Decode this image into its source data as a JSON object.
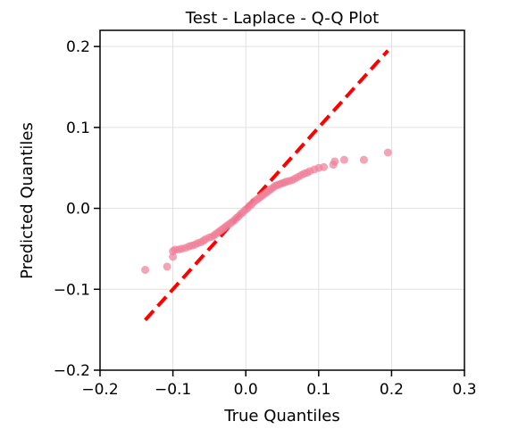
{
  "chart_data": {
    "type": "scatter",
    "title": "Test - Laplace - Q-Q Plot",
    "xlabel": "True Quantiles",
    "ylabel": "Predicted Quantiles",
    "xlim": [
      -0.2,
      0.3
    ],
    "ylim": [
      -0.2,
      0.22
    ],
    "xticks": [
      -0.2,
      -0.1,
      0.0,
      0.1,
      0.2,
      0.3
    ],
    "yticks": [
      -0.2,
      -0.1,
      0.0,
      0.1,
      0.2
    ],
    "xtick_labels": [
      "−0.2",
      "−0.1",
      "0.0",
      "0.1",
      "0.2",
      "0.3"
    ],
    "ytick_labels": [
      "−0.2",
      "−0.1",
      "0.0",
      "0.1",
      "0.2"
    ],
    "grid": true,
    "marker_color": "#f07d97",
    "reference_line": {
      "style": "dashed",
      "color": "#ff0000",
      "x": [
        -0.138,
        0.195
      ],
      "y": [
        -0.138,
        0.195
      ]
    },
    "points": [
      [
        -0.138,
        -0.076
      ],
      [
        -0.108,
        -0.072
      ],
      [
        -0.1,
        -0.06
      ],
      [
        -0.1,
        -0.053
      ],
      [
        -0.097,
        -0.051
      ],
      [
        -0.092,
        -0.051
      ],
      [
        -0.088,
        -0.05
      ],
      [
        -0.083,
        -0.049
      ],
      [
        -0.078,
        -0.047
      ],
      [
        -0.074,
        -0.046
      ],
      [
        -0.07,
        -0.045
      ],
      [
        -0.066,
        -0.043
      ],
      [
        -0.062,
        -0.042
      ],
      [
        -0.058,
        -0.04
      ],
      [
        -0.055,
        -0.038
      ],
      [
        -0.05,
        -0.036
      ],
      [
        -0.046,
        -0.035
      ],
      [
        -0.043,
        -0.033
      ],
      [
        -0.04,
        -0.031
      ],
      [
        -0.037,
        -0.029
      ],
      [
        -0.034,
        -0.027
      ],
      [
        -0.031,
        -0.025
      ],
      [
        -0.028,
        -0.023
      ],
      [
        -0.025,
        -0.021
      ],
      [
        -0.022,
        -0.019
      ],
      [
        -0.019,
        -0.017
      ],
      [
        -0.016,
        -0.015
      ],
      [
        -0.013,
        -0.012
      ],
      [
        -0.01,
        -0.01
      ],
      [
        -0.007,
        -0.007
      ],
      [
        -0.004,
        -0.005
      ],
      [
        -0.001,
        -0.002
      ],
      [
        0.002,
        0.0
      ],
      [
        0.005,
        0.003
      ],
      [
        0.008,
        0.005
      ],
      [
        0.011,
        0.008
      ],
      [
        0.014,
        0.01
      ],
      [
        0.017,
        0.012
      ],
      [
        0.02,
        0.014
      ],
      [
        0.023,
        0.016
      ],
      [
        0.026,
        0.018
      ],
      [
        0.029,
        0.02
      ],
      [
        0.032,
        0.022
      ],
      [
        0.035,
        0.024
      ],
      [
        0.038,
        0.026
      ],
      [
        0.041,
        0.028
      ],
      [
        0.044,
        0.029
      ],
      [
        0.047,
        0.03
      ],
      [
        0.05,
        0.031
      ],
      [
        0.053,
        0.032
      ],
      [
        0.056,
        0.033
      ],
      [
        0.06,
        0.034
      ],
      [
        0.064,
        0.035
      ],
      [
        0.068,
        0.037
      ],
      [
        0.072,
        0.039
      ],
      [
        0.076,
        0.041
      ],
      [
        0.08,
        0.043
      ],
      [
        0.084,
        0.044
      ],
      [
        0.088,
        0.046
      ],
      [
        0.094,
        0.048
      ],
      [
        0.1,
        0.05
      ],
      [
        0.107,
        0.051
      ],
      [
        0.12,
        0.054
      ],
      [
        0.122,
        0.058
      ],
      [
        0.135,
        0.06
      ],
      [
        0.162,
        0.06
      ],
      [
        0.195,
        0.069
      ]
    ]
  }
}
